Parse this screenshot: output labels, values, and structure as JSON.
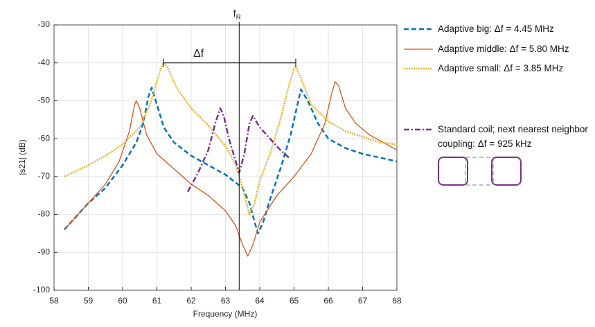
{
  "chart_data": {
    "type": "line",
    "x_label": "Frequency (MHz)",
    "y_label": "|s21| (dB)",
    "xlim": [
      58,
      68
    ],
    "xticks": [
      58,
      59,
      60,
      61,
      62,
      63,
      64,
      65,
      66,
      67,
      68
    ],
    "ylim": [
      -100,
      -30
    ],
    "yticks": [
      -100,
      -90,
      -80,
      -70,
      -60,
      -50,
      -40,
      -30
    ],
    "grid": true,
    "series": [
      {
        "name": "Adaptive big:  Δf = 4.45 MHz",
        "color": "#0072BD",
        "style": "dashed",
        "x": [
          58.3,
          59,
          59.5,
          60,
          60.4,
          60.6,
          60.75,
          60.85,
          61,
          61.2,
          61.5,
          62,
          62.5,
          63,
          63.5,
          63.7,
          63.85,
          63.95,
          64.1,
          64.3,
          64.6,
          64.9,
          65.1,
          65.2,
          65.4,
          65.7,
          66,
          66.5,
          67,
          67.5,
          68
        ],
        "values": [
          -84,
          -77,
          -73,
          -67,
          -61,
          -56,
          -49,
          -46.5,
          -51,
          -57,
          -61,
          -64.5,
          -67,
          -69.5,
          -73,
          -77,
          -82,
          -85,
          -82,
          -76,
          -68,
          -59,
          -51,
          -47,
          -50,
          -56,
          -60,
          -62.5,
          -64,
          -65,
          -66
        ]
      },
      {
        "name": "Adaptive middle: Δf = 5.80 MHz",
        "color": "#D95319",
        "style": "solid",
        "x": [
          58.3,
          59,
          59.5,
          59.9,
          60.2,
          60.35,
          60.4,
          60.5,
          60.7,
          61,
          61.5,
          62,
          62.5,
          63,
          63.3,
          63.5,
          63.65,
          63.8,
          64,
          64.5,
          65,
          65.5,
          65.9,
          66.1,
          66.2,
          66.3,
          66.5,
          66.8,
          67.2,
          67.6,
          68
        ],
        "values": [
          -84,
          -77,
          -72,
          -66,
          -58,
          -51,
          -50,
          -52,
          -59,
          -64,
          -68,
          -72,
          -75,
          -79,
          -83,
          -88,
          -91,
          -88,
          -82,
          -75,
          -70,
          -64,
          -56,
          -48,
          -45,
          -46,
          -52,
          -56,
          -59,
          -61,
          -63
        ]
      },
      {
        "name": "Adaptive small: Δf = 3.85 MHz",
        "color": "#EDB120",
        "style": "dotted",
        "x": [
          58.3,
          59,
          59.5,
          60,
          60.5,
          60.8,
          61,
          61.15,
          61.2,
          61.3,
          61.6,
          62,
          62.5,
          63,
          63.3,
          63.5,
          63.7,
          63.85,
          64,
          64.3,
          64.6,
          64.85,
          65,
          65.05,
          65.2,
          65.5,
          66,
          66.5,
          67,
          67.5,
          68
        ],
        "values": [
          -70,
          -67,
          -64.5,
          -61.5,
          -57,
          -51,
          -45,
          -40.5,
          -40,
          -41,
          -47,
          -52,
          -56.5,
          -62,
          -67,
          -73,
          -80,
          -77,
          -71,
          -64,
          -55,
          -46,
          -41.5,
          -41,
          -44,
          -51,
          -55.5,
          -58,
          -59.5,
          -61,
          -61.5
        ]
      },
      {
        "name": "Standard coil; next nearest neighbor coupling: Δf = 925 kHz",
        "color": "#7E2F8E",
        "style": "dashdot",
        "x": [
          61.9,
          62.2,
          62.5,
          62.7,
          62.85,
          62.95,
          63.1,
          63.3,
          63.4,
          63.55,
          63.7,
          63.8,
          64,
          64.3,
          64.6,
          64.85
        ],
        "values": [
          -74,
          -69,
          -63,
          -56,
          -52,
          -54,
          -60,
          -66,
          -69,
          -64,
          -56,
          -54,
          -57,
          -60,
          -63,
          -65
        ]
      }
    ],
    "resonance_marker": {
      "label": "f",
      "subscript": "R",
      "x": 63.4
    },
    "delta_f_marker": {
      "label": "Δf",
      "x": [
        61.2,
        65.05
      ],
      "y": -40
    }
  }
}
